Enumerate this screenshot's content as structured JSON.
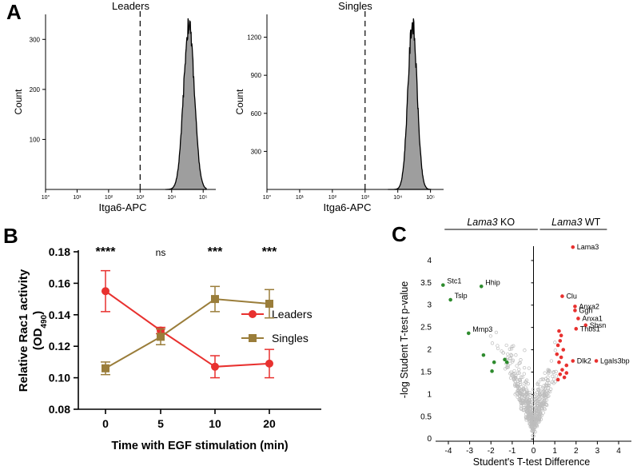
{
  "chart_data": [
    {
      "panel": "A",
      "type": "area",
      "title": "Leaders",
      "xlabel": "Itga6-APC",
      "ylabel": "Count",
      "x_scale": "log",
      "x_tick_labels": [
        "10°",
        "10¹",
        "10²",
        "10³",
        "10⁴",
        "10⁵"
      ],
      "y_tick_labels": [
        "100",
        "200",
        "300"
      ],
      "ylim": [
        0,
        350
      ],
      "gate_line_x": 1000,
      "histogram": {
        "peak_decade": 4.55,
        "peak_count": 330,
        "spread": 0.17
      }
    },
    {
      "panel": "A",
      "type": "area",
      "title": "Singles",
      "xlabel": "Itga6-APC",
      "ylabel": "Count",
      "x_scale": "log",
      "x_tick_labels": [
        "10°",
        "10¹",
        "10²",
        "10³",
        "10⁴",
        "10⁵"
      ],
      "y_tick_labels": [
        "300",
        "600",
        "900",
        "1200"
      ],
      "ylim": [
        0,
        1380
      ],
      "gate_line_x": 1000,
      "histogram": {
        "peak_decade": 4.45,
        "peak_count": 1310,
        "spread": 0.14
      }
    },
    {
      "panel": "B",
      "type": "line",
      "xlabel": "Time with EGF stimulation (min)",
      "ylabel": "Relative Rac1 activity",
      "ylabel_unit_main": "(OD",
      "ylabel_unit_sub": "490",
      "ylabel_unit_end": ")",
      "categories": [
        "0",
        "5",
        "10",
        "20"
      ],
      "y_tick_labels": [
        "0.08",
        "0.10",
        "0.12",
        "0.14",
        "0.16",
        "0.18"
      ],
      "ylim": [
        0.08,
        0.18
      ],
      "series": [
        {
          "name": "Leaders",
          "color": "#e8312f",
          "marker": "circle",
          "values": [
            0.155,
            0.13,
            0.107,
            0.109
          ],
          "errors": [
            0.013,
            0.002,
            0.007,
            0.009
          ]
        },
        {
          "name": "Singles",
          "color": "#9a7d3a",
          "marker": "square",
          "values": [
            0.106,
            0.126,
            0.15,
            0.147
          ],
          "errors": [
            0.004,
            0.005,
            0.008,
            0.009
          ]
        }
      ],
      "significance": [
        "****",
        "ns",
        "***",
        "***"
      ]
    },
    {
      "panel": "C",
      "type": "scatter",
      "xlabel": "Student's T-test Difference",
      "ylabel": "-log Student T-test p-value",
      "x_tick_labels": [
        "-4",
        "-3",
        "-2",
        "-1",
        "0",
        "1",
        "2",
        "3",
        "4"
      ],
      "y_tick_labels": [
        "0",
        "0.5",
        "1",
        "1.5",
        "2",
        "2.5",
        "3",
        "3.5",
        "4"
      ],
      "xlim": [
        -4.6,
        4.6
      ],
      "ylim": [
        -0.05,
        4.5
      ],
      "group_labels": [
        {
          "gene": "Lama3",
          "suffix": " KO"
        },
        {
          "gene": "Lama3",
          "suffix": " WT"
        }
      ],
      "colors": {
        "up": "#e8312f",
        "down": "#2e8b2e",
        "ns": "#bdbdbd"
      },
      "up_labeled": [
        {
          "name": "Lama3",
          "x": 1.85,
          "y": 4.3
        },
        {
          "name": "Clu",
          "x": 1.35,
          "y": 3.2
        },
        {
          "name": "Anxa2",
          "x": 1.95,
          "y": 2.97
        },
        {
          "name": "Ggh",
          "x": 1.95,
          "y": 2.88
        },
        {
          "name": "Anxa1",
          "x": 2.1,
          "y": 2.7
        },
        {
          "name": "Sbsn",
          "x": 2.45,
          "y": 2.55
        },
        {
          "name": "Thbs1",
          "x": 2.0,
          "y": 2.47
        },
        {
          "name": "Dlk2",
          "x": 1.85,
          "y": 1.75
        },
        {
          "name": "Lgals3bp",
          "x": 2.95,
          "y": 1.75
        }
      ],
      "up_other": [
        [
          1.2,
          2.42
        ],
        [
          1.3,
          2.32
        ],
        [
          1.25,
          2.2
        ],
        [
          1.15,
          2.1
        ],
        [
          1.4,
          2.0
        ],
        [
          1.1,
          1.9
        ],
        [
          1.3,
          1.83
        ],
        [
          1.2,
          1.72
        ],
        [
          1.55,
          1.65
        ],
        [
          1.35,
          1.55
        ],
        [
          1.25,
          1.45
        ],
        [
          1.45,
          1.38
        ],
        [
          1.15,
          1.33
        ],
        [
          1.55,
          1.48
        ]
      ],
      "down_labeled": [
        {
          "name": "Stc1",
          "x": -4.25,
          "y": 3.45
        },
        {
          "name": "Hhip",
          "x": -2.45,
          "y": 3.42
        },
        {
          "name": "Tslp",
          "x": -3.9,
          "y": 3.12
        },
        {
          "name": "Mmp3",
          "x": -3.05,
          "y": 2.37
        }
      ],
      "down_other": [
        [
          -2.35,
          1.88
        ],
        [
          -1.85,
          1.72
        ],
        [
          -1.35,
          1.78
        ],
        [
          -1.25,
          1.72
        ],
        [
          -1.95,
          1.52
        ]
      ]
    }
  ]
}
